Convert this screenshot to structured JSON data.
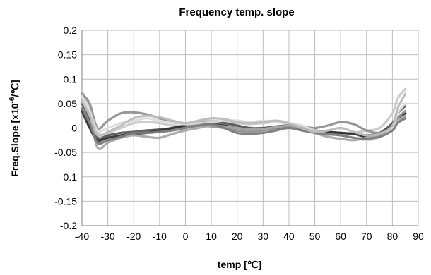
{
  "chart_data": {
    "type": "line",
    "title": "Frequency temp. slope",
    "xlabel": "temp [℃]",
    "ylabel_base": "Freq.Slope [x10",
    "ylabel_sup": "-6",
    "ylabel_tail": "/℃]",
    "xlim": [
      -40,
      90
    ],
    "ylim": [
      -0.2,
      0.2
    ],
    "x_ticks": [
      -40,
      -30,
      -20,
      -10,
      0,
      10,
      20,
      30,
      40,
      50,
      60,
      70,
      80,
      90
    ],
    "y_ticks": [
      0.2,
      0.15,
      0.1,
      0.05,
      0,
      -0.05,
      -0.1,
      -0.15,
      -0.2
    ],
    "y_tick_labels": [
      "0.2",
      "0.15",
      "0.1",
      "0.05",
      "0",
      "-0.05",
      "-0.1",
      "-0.15",
      "-0.2"
    ],
    "grid": true,
    "legend": "none",
    "series": [
      {
        "color": "#c8c8c8",
        "x": [
          -40,
          -37,
          -34,
          -30,
          -25,
          -20,
          -15,
          -10,
          -5,
          0,
          5,
          10,
          15,
          20,
          25,
          30,
          35,
          40,
          45,
          50,
          55,
          60,
          65,
          70,
          75,
          80,
          82,
          85
        ],
        "y": [
          0.075,
          0.04,
          -0.01,
          -0.01,
          0.0,
          0.01,
          0.012,
          0.01,
          0.005,
          0.008,
          0.012,
          0.015,
          0.012,
          0.01,
          0.008,
          0.01,
          0.012,
          0.008,
          0.0,
          -0.01,
          -0.015,
          -0.012,
          -0.01,
          -0.005,
          0.0,
          0.03,
          0.06,
          0.08
        ]
      },
      {
        "color": "#555555",
        "x": [
          -40,
          -37,
          -34,
          -30,
          -25,
          -20,
          -15,
          -10,
          -5,
          0,
          5,
          10,
          15,
          20,
          25,
          30,
          35,
          40,
          45,
          50,
          55,
          60,
          65,
          70,
          75,
          80,
          82,
          85
        ],
        "y": [
          0.05,
          0.02,
          -0.02,
          -0.015,
          -0.01,
          -0.008,
          -0.005,
          -0.003,
          0.0,
          0.005,
          0.01,
          0.012,
          0.01,
          0.005,
          0.0,
          0.0,
          0.003,
          0.005,
          0.0,
          -0.005,
          -0.008,
          -0.01,
          -0.012,
          -0.015,
          -0.01,
          0.01,
          0.03,
          0.045
        ]
      },
      {
        "color": "#333333",
        "x": [
          -40,
          -37,
          -34,
          -30,
          -25,
          -20,
          -15,
          -10,
          -5,
          0,
          5,
          10,
          15,
          20,
          25,
          30,
          35,
          40,
          45,
          50,
          55,
          60,
          65,
          70,
          75,
          80,
          82,
          85
        ],
        "y": [
          0.035,
          0.0,
          -0.025,
          -0.02,
          -0.015,
          -0.012,
          -0.01,
          -0.005,
          0.0,
          0.005,
          0.01,
          0.008,
          0.005,
          0.0,
          -0.003,
          -0.002,
          0.0,
          0.003,
          -0.002,
          -0.005,
          -0.008,
          -0.01,
          -0.012,
          -0.018,
          -0.012,
          0.005,
          0.02,
          0.03
        ]
      },
      {
        "color": "#909090",
        "x": [
          -40,
          -37,
          -34,
          -30,
          -25,
          -20,
          -15,
          -10,
          -5,
          0,
          5,
          10,
          15,
          20,
          25,
          30,
          35,
          40,
          45,
          50,
          55,
          60,
          65,
          70,
          75,
          80,
          82,
          85
        ],
        "y": [
          0.07,
          0.05,
          0.0,
          0.015,
          0.03,
          0.032,
          0.028,
          0.02,
          0.012,
          0.008,
          0.005,
          0.003,
          0.0,
          -0.005,
          -0.008,
          -0.005,
          0.0,
          0.005,
          0.003,
          0.0,
          0.005,
          0.012,
          0.008,
          -0.005,
          -0.01,
          0.0,
          0.02,
          0.035
        ]
      },
      {
        "color": "#a8a8a8",
        "x": [
          -40,
          -37,
          -34,
          -30,
          -25,
          -20,
          -15,
          -10,
          -5,
          0,
          5,
          10,
          15,
          20,
          25,
          30,
          35,
          40,
          45,
          50,
          55,
          60,
          65,
          70,
          75,
          80,
          82,
          85
        ],
        "y": [
          0.06,
          0.03,
          -0.04,
          -0.03,
          -0.02,
          -0.015,
          -0.018,
          -0.02,
          -0.012,
          -0.005,
          0.0,
          0.005,
          0.003,
          0.0,
          -0.003,
          -0.002,
          0.002,
          0.004,
          -0.002,
          -0.01,
          -0.018,
          -0.022,
          -0.025,
          -0.02,
          -0.015,
          0.0,
          0.015,
          0.025
        ]
      },
      {
        "color": "#dcdcdc",
        "x": [
          -40,
          -37,
          -34,
          -30,
          -25,
          -20,
          -15,
          -10,
          -5,
          0,
          5,
          10,
          15,
          20,
          25,
          30,
          35,
          40,
          45,
          50,
          55,
          60,
          65,
          70,
          75,
          80,
          82,
          85
        ],
        "y": [
          0.065,
          0.035,
          -0.005,
          0.0,
          0.01,
          0.015,
          0.02,
          0.015,
          0.01,
          0.008,
          0.01,
          0.012,
          0.015,
          0.015,
          0.012,
          0.015,
          0.012,
          0.01,
          0.005,
          -0.005,
          -0.012,
          -0.015,
          -0.02,
          -0.025,
          -0.02,
          0.0,
          0.03,
          0.05
        ]
      },
      {
        "color": "#7a7a7a",
        "x": [
          -40,
          -37,
          -34,
          -30,
          -25,
          -20,
          -15,
          -10,
          -5,
          0,
          5,
          10,
          15,
          20,
          25,
          30,
          35,
          40,
          45,
          50,
          55,
          60,
          65,
          70,
          75,
          80,
          82,
          85
        ],
        "y": [
          0.04,
          0.01,
          -0.03,
          -0.025,
          -0.018,
          -0.01,
          -0.01,
          -0.008,
          -0.005,
          0.0,
          0.005,
          0.008,
          0.0,
          -0.01,
          -0.012,
          -0.01,
          -0.005,
          0.0,
          -0.005,
          -0.01,
          -0.012,
          -0.015,
          -0.02,
          -0.022,
          -0.018,
          -0.005,
          0.01,
          0.02
        ]
      },
      {
        "color": "#bcbcbc",
        "x": [
          -40,
          -37,
          -34,
          -30,
          -25,
          -20,
          -15,
          -10,
          -5,
          0,
          5,
          10,
          15,
          20,
          25,
          30,
          35,
          40,
          45,
          50,
          55,
          60,
          65,
          70,
          75,
          80,
          82,
          85
        ],
        "y": [
          0.055,
          0.025,
          -0.015,
          -0.008,
          0.005,
          0.02,
          0.025,
          0.022,
          0.015,
          0.01,
          0.015,
          0.02,
          0.018,
          0.012,
          0.01,
          0.012,
          0.015,
          0.01,
          0.0,
          -0.008,
          -0.005,
          0.0,
          -0.008,
          -0.015,
          -0.012,
          0.005,
          0.04,
          0.07
        ]
      }
    ]
  }
}
